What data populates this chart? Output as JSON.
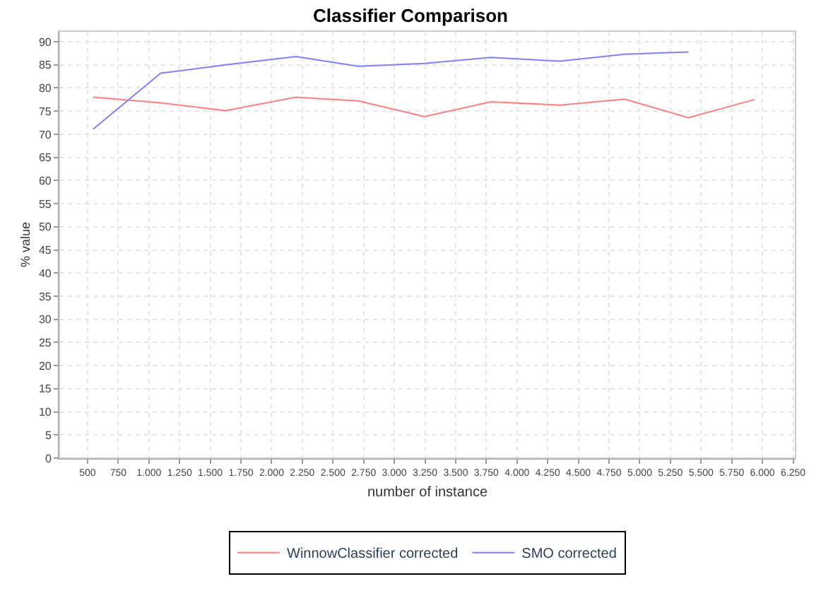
{
  "chart_data": {
    "type": "line",
    "title": "Classifier Comparison",
    "xlabel": "number of instance",
    "ylabel": "% value",
    "x": [
      545,
      1096,
      1625,
      2198,
      2706,
      3246,
      3786,
      4348,
      4877,
      5396,
      5935
    ],
    "series": [
      {
        "name": "WinnowClassifier corrected",
        "color": "#ff8080",
        "values": [
          78.0,
          76.8,
          75.1,
          78.0,
          77.2,
          73.8,
          77.0,
          76.3,
          77.6,
          73.6,
          77.5
        ]
      },
      {
        "name": "SMO corrected",
        "color": "#8080ff",
        "values": [
          71.1,
          83.2,
          85.0,
          86.8,
          84.7,
          85.3,
          86.6,
          85.8,
          87.3,
          87.8,
          null
        ]
      }
    ],
    "xlim": [
      270,
      6270
    ],
    "ylim": [
      0,
      92.3
    ],
    "xticks": [
      500,
      750,
      {
        "value": 1000,
        "label": "1.000"
      },
      {
        "value": 1250,
        "label": "1.250"
      },
      {
        "value": 1500,
        "label": "1.500"
      },
      {
        "value": 1750,
        "label": "1.750"
      },
      {
        "value": 2000,
        "label": "2.000"
      },
      {
        "value": 2250,
        "label": "2.250"
      },
      {
        "value": 2500,
        "label": "2.500"
      },
      {
        "value": 2750,
        "label": "2.750"
      },
      {
        "value": 3000,
        "label": "3.000"
      },
      {
        "value": 3250,
        "label": "3.250"
      },
      {
        "value": 3500,
        "label": "3.500"
      },
      {
        "value": 3750,
        "label": "3.750"
      },
      {
        "value": 4000,
        "label": "4.000"
      },
      {
        "value": 4250,
        "label": "4.250"
      },
      {
        "value": 4500,
        "label": "4.500"
      },
      {
        "value": 4750,
        "label": "4.750"
      },
      {
        "value": 5000,
        "label": "5.000"
      },
      {
        "value": 5250,
        "label": "5.250"
      },
      {
        "value": 5500,
        "label": "5.500"
      },
      {
        "value": 5750,
        "label": "5.750"
      },
      {
        "value": 6000,
        "label": "6.000"
      },
      {
        "value": 6250,
        "label": "6.250"
      }
    ],
    "yticks": [
      0,
      5,
      10,
      15,
      20,
      25,
      30,
      35,
      40,
      45,
      50,
      55,
      60,
      65,
      70,
      75,
      80,
      85,
      90
    ],
    "grid": true,
    "legend": "bottom",
    "marker": "none",
    "line_style": "solid"
  }
}
